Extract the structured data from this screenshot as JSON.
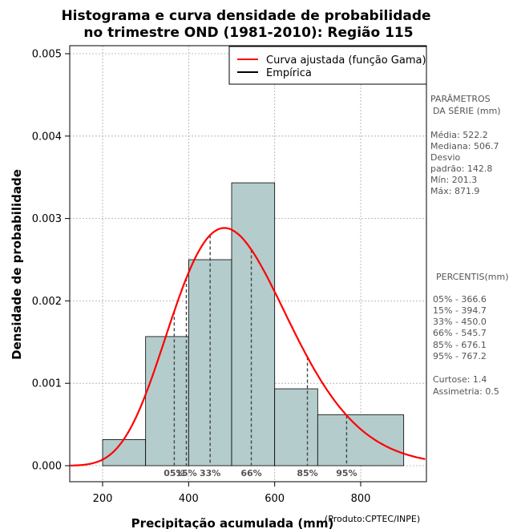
{
  "chart_data": {
    "type": "bar",
    "title_line1": "Histograma e curva densidade de probabilidade",
    "title_line2": "no trimestre OND (1981-2010): Região 115",
    "xlabel": "Precipitação acumulada (mm)",
    "ylabel": "Densidade de probabilidade",
    "credit": "(Produto:CPTEC/INPE)",
    "xlim": [
      125,
      955
    ],
    "ylim": [
      0,
      0.0051
    ],
    "x_ticks": [
      200,
      400,
      600,
      800
    ],
    "y_ticks": [
      "0.000",
      "0.001",
      "0.002",
      "0.003",
      "0.004",
      "0.005"
    ],
    "y_tick_values": [
      0,
      0.001,
      0.002,
      0.003,
      0.004,
      0.005
    ],
    "bins": [
      {
        "start": 200,
        "end": 300,
        "density": 0.000317
      },
      {
        "start": 300,
        "end": 400,
        "density": 0.001567
      },
      {
        "start": 400,
        "end": 500,
        "density": 0.0025
      },
      {
        "start": 500,
        "end": 600,
        "density": 0.003433
      },
      {
        "start": 600,
        "end": 700,
        "density": 0.000933
      },
      {
        "start": 700,
        "end": 900,
        "density": 0.000617
      }
    ],
    "gamma_fit": {
      "mean": 522.2,
      "sd": 142.8
    },
    "percentile_marks": [
      {
        "label": "05%",
        "value": 366.6
      },
      {
        "label": "15%",
        "value": 394.7
      },
      {
        "label": "33%",
        "value": 450.0
      },
      {
        "label": "66%",
        "value": 545.7
      },
      {
        "label": "85%",
        "value": 676.1
      },
      {
        "label": "95%",
        "value": 767.2
      }
    ],
    "legend": [
      {
        "label": "Curva ajustada (função Gama)",
        "color": "#ff0000"
      },
      {
        "label": "Empírica",
        "color": "#000000"
      }
    ],
    "colors": {
      "bar": "#b4cccc",
      "curve": "#ff0000",
      "grid": "#aaaaaa"
    }
  },
  "side_panel": {
    "params_title_1": "PARÂMETROS",
    "params_title_2": "DA SÉRIE (mm)",
    "media": "Média:  522.2",
    "mediana": "Mediana:  506.7",
    "desvio_1": "Desvio",
    "desvio_2": "padrão:  142.8",
    "min": "Mín:  201.3",
    "max": "Máx:  871.9",
    "percentis_title": "PERCENTIS(mm)",
    "percentis": [
      "05% -   366.6",
      "15% -   394.7",
      "33% -   450.0",
      "66% -   545.7",
      "85% -   676.1",
      "95% -   767.2"
    ],
    "curtose": "Curtose:  1.4",
    "assimetria": "Assimetria:  0.5"
  }
}
